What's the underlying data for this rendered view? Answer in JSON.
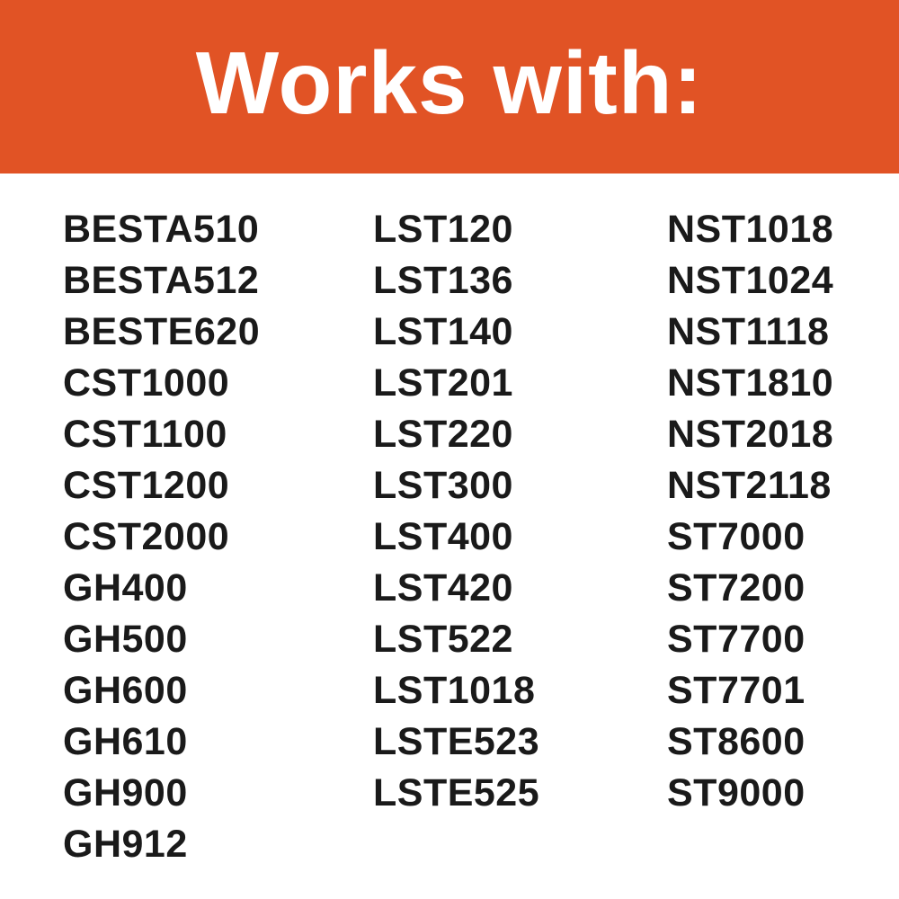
{
  "header": {
    "title": "Works with:",
    "background_color": "#e15325"
  },
  "columns": [
    [
      "BESTA510",
      "BESTA512",
      "BESTE620",
      "CST1000",
      "CST1100",
      "CST1200",
      "CST2000",
      "GH400",
      "GH500",
      "GH600",
      "GH610",
      "GH900",
      "GH912"
    ],
    [
      "LST120",
      "LST136",
      "LST140",
      "LST201",
      "LST220",
      "LST300",
      "LST400",
      "LST420",
      "LST522",
      "LST1018",
      "LSTE523",
      "LSTE525"
    ],
    [
      "NST1018",
      "NST1024",
      "NST1118",
      "NST1810",
      "NST2018",
      "NST2118",
      "ST7000",
      "ST7200",
      "ST7700",
      "ST7701",
      "ST8600",
      "ST9000"
    ]
  ]
}
